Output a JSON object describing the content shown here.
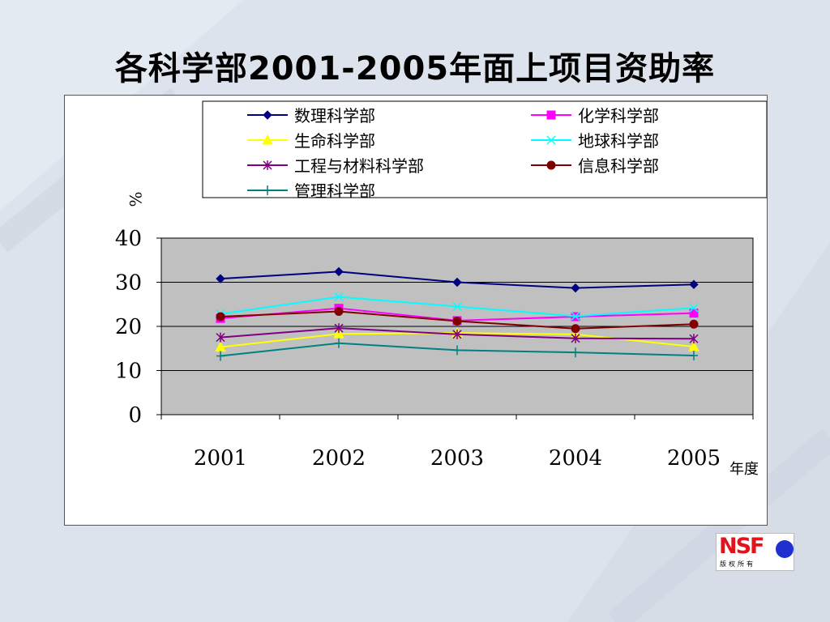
{
  "slide": {
    "title": "各科学部2001-2005年面上项目资助率"
  },
  "logo": {
    "text": "NSF",
    "rights": "版权所有",
    "colors": {
      "text": "#e0141b",
      "dot": "#1f2fd0"
    }
  },
  "chart_data": {
    "type": "line",
    "categories": [
      "2001",
      "2002",
      "2003",
      "2004",
      "2005"
    ],
    "ylabel": "%",
    "xlabel": "年度",
    "ylim": [
      0,
      40
    ],
    "yticks": [
      "0",
      "10",
      "20",
      "30",
      "40"
    ],
    "grid": true,
    "plot_background": "#c0c0c0",
    "legend_position": "top",
    "series": [
      {
        "name": "数理科学部",
        "color": "#000080",
        "marker": "diamond",
        "values": [
          30.8,
          32.4,
          30.0,
          28.7,
          29.5
        ]
      },
      {
        "name": "化学科学部",
        "color": "#ff00ff",
        "marker": "square",
        "values": [
          21.8,
          24.1,
          21.3,
          22.2,
          23.0
        ]
      },
      {
        "name": "生命科学部",
        "color": "#ffff00",
        "marker": "triangle",
        "values": [
          15.3,
          18.3,
          18.5,
          18.2,
          15.4
        ]
      },
      {
        "name": "地球科学部",
        "color": "#00ffff",
        "marker": "x",
        "values": [
          22.8,
          26.7,
          24.5,
          22.3,
          24.2
        ]
      },
      {
        "name": "工程与材料科学部",
        "color": "#800080",
        "marker": "star",
        "values": [
          17.5,
          19.6,
          18.2,
          17.3,
          17.2
        ]
      },
      {
        "name": "信息科学部",
        "color": "#800000",
        "marker": "circle",
        "values": [
          22.2,
          23.4,
          21.2,
          19.5,
          20.5
        ]
      },
      {
        "name": "管理科学部",
        "color": "#008080",
        "marker": "plus",
        "values": [
          13.3,
          16.2,
          14.6,
          14.1,
          13.4
        ]
      }
    ]
  }
}
